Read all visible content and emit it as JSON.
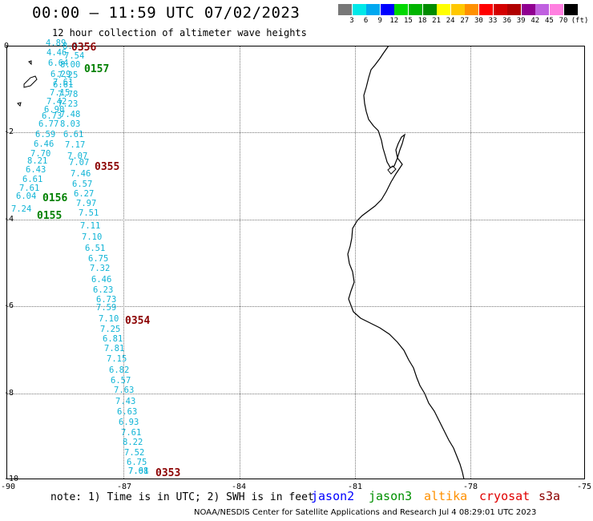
{
  "header": {
    "title": "00:00 – 11:59 UTC 07/02/2023",
    "subtitle": "12 hour collection of altimeter wave heights"
  },
  "scale": {
    "unit": "(ft)",
    "levels": [
      "3",
      "6",
      "9",
      "12",
      "15",
      "18",
      "21",
      "24",
      "27",
      "30",
      "33",
      "36",
      "39",
      "42",
      "45",
      "70"
    ],
    "colors": [
      "#787878",
      "#00e8e8",
      "#00a8f0",
      "#0000ff",
      "#00d800",
      "#00b400",
      "#008c00",
      "#ffff00",
      "#ffc800",
      "#ff9000",
      "#ff0000",
      "#d40000",
      "#b00000",
      "#900090",
      "#c060e0",
      "#ff80e0",
      "#000000"
    ]
  },
  "axes": {
    "y_labels": [
      "0",
      "-2",
      "-4",
      "-6",
      "-8",
      "-10"
    ],
    "x_labels": [
      "-90",
      "-87",
      "-84",
      "-81",
      "-78",
      "-75"
    ]
  },
  "observations": [
    "4.89",
    "8.4",
    "4.46",
    "7.54",
    "6.64",
    "8.00",
    "6.29",
    "7.25",
    "7.61",
    "6.61",
    "7.15",
    "7.78",
    "7.42",
    "7.23",
    "6.90",
    "7.48",
    "6.73",
    "6.77",
    "8.03",
    "6.59",
    "6.61",
    "6.46",
    "7.17",
    "7.70",
    "7.07",
    "8.21",
    "7.07",
    "6.43",
    "7.46",
    "6.61",
    "6.57",
    "7.61",
    "6.27",
    "6.04",
    "7.97",
    "7.24",
    "7.51",
    "7.11",
    "7.10",
    "6.51",
    "6.75",
    "7.32",
    "6.46",
    "6.23",
    "6.73",
    "7.59",
    "7.10",
    "7.25",
    "6.81",
    "7.81",
    "7.15",
    "6.82",
    "6.57",
    "7.63",
    "7.43",
    "6.63",
    "6.93",
    "7.61",
    "8.22",
    "7.52",
    "6.75",
    "7.68",
    "7.01"
  ],
  "passes": [
    {
      "label": "0356",
      "color": "dred"
    },
    {
      "label": "0157",
      "color": "green"
    },
    {
      "label": "0355",
      "color": "dred"
    },
    {
      "label": "0156",
      "color": "green"
    },
    {
      "label": "0155",
      "color": "green"
    },
    {
      "label": "0354",
      "color": "dred"
    },
    {
      "label": "0353",
      "color": "dred"
    }
  ],
  "footer": {
    "note": "note: 1) Time is in UTC; 2) SWH is in feet",
    "satellites": [
      {
        "name": "jason2",
        "color": "#0000ff"
      },
      {
        "name": "jason3",
        "color": "#009000"
      },
      {
        "name": "altika",
        "color": "#ff9000"
      },
      {
        "name": "cryosat",
        "color": "#e00000"
      },
      {
        "name": "s3a",
        "color": "#8b0000"
      }
    ],
    "credit": "NOAA/NESDIS Center for Satellite Applications and Research   Jul  4 08:29:01 UTC 2023"
  }
}
